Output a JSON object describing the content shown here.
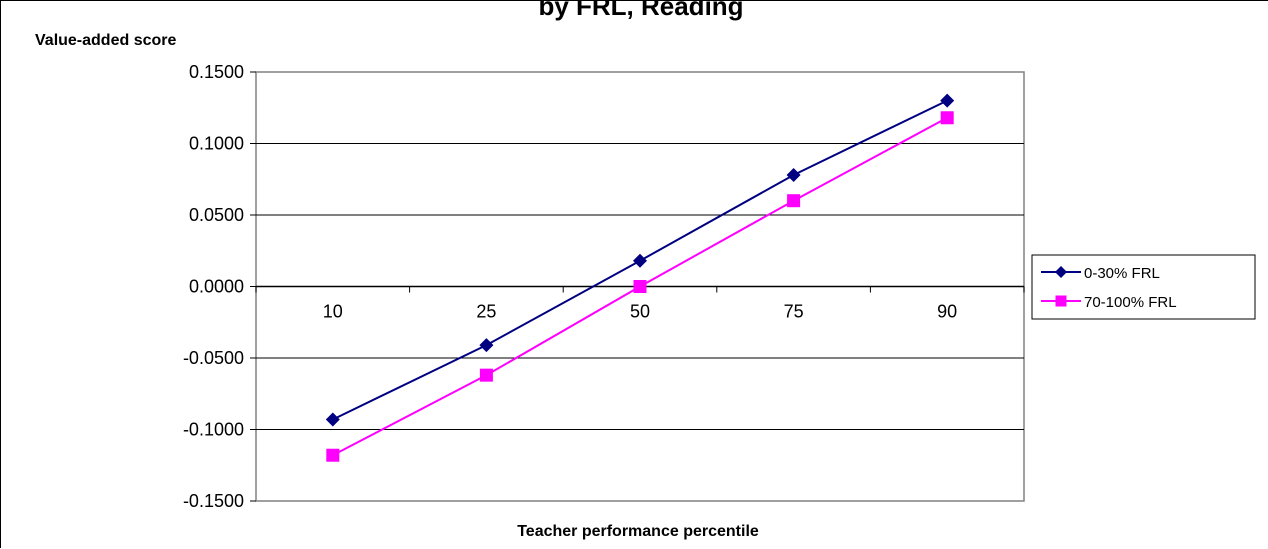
{
  "chart_data": {
    "type": "line",
    "title": "by FRL, Reading",
    "xlabel": "Teacher performance percentile",
    "ylabel": "Value-added score",
    "categories": [
      "10",
      "25",
      "50",
      "75",
      "90"
    ],
    "y_tick_labels": [
      "0.1500",
      "0.1000",
      "0.0500",
      "0.0000",
      "-0.0500",
      "-0.1000",
      "-0.1500"
    ],
    "ylim": [
      -0.15,
      0.15
    ],
    "grid": true,
    "legend_position": "right",
    "series": [
      {
        "name": "0-30% FRL",
        "values": [
          -0.093,
          -0.041,
          0.018,
          0.078,
          0.13
        ],
        "color": "#000080",
        "marker": "diamond"
      },
      {
        "name": "70-100% FRL",
        "values": [
          -0.118,
          -0.062,
          0.0,
          0.06,
          0.118
        ],
        "color": "#ff00ff",
        "marker": "square"
      }
    ]
  }
}
